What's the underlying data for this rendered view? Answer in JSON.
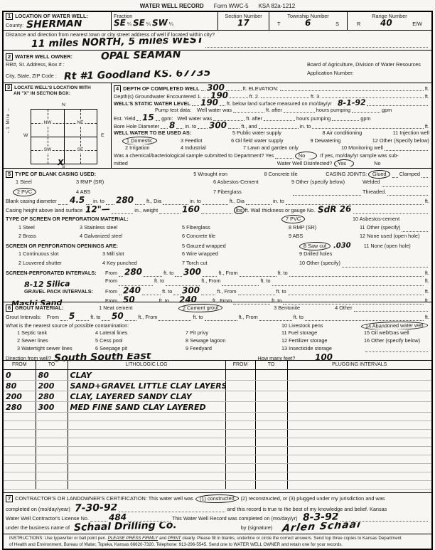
{
  "colors": {
    "paper": "#f7f6f2",
    "ink": "#1b1b1b",
    "handwriting": "#14120f"
  },
  "header": {
    "title": "WATER WELL RECORD",
    "form_no": "Form WWC-5",
    "ksa": "KSA 82a-1212"
  },
  "tok": {
    "from": "From",
    "ft_to": "ft. to",
    "ft_from": "ft., From",
    "ft": "ft.",
    "in_to": "in. to",
    "ft_dia": "ft., Dia",
    "gpm": "gpm",
    "yes": "Yes",
    "no": "No",
    "quarter": "¼",
    "t": "T",
    "s": "S",
    "r": "R",
    "ew": "E/W"
  },
  "s1": {
    "num": "1",
    "title": "LOCATION OF WATER WELL:",
    "county_label": "County:",
    "county": "SHERMAN",
    "fraction_label": "Fraction",
    "f1": "SE",
    "f2": "SE",
    "f3": "SW",
    "sec_label": "Section Number",
    "sec": "17",
    "twp_label": "Township Number",
    "twp": "6",
    "rng_label": "Range Number",
    "rng": "40",
    "distance_label": "Distance and direction from nearest town or city street address of well if located within city?",
    "distance": "11 miles NORTH, 5 miles WEST"
  },
  "s2": {
    "num": "2",
    "title": "WATER WELL OWNER:",
    "owner": "OPAL SEAMAN",
    "addr_label": "RR#, St. Address, Box #  :",
    "agency": "Board of Agriculture, Division of Water Resources",
    "city_label": "City, State, ZIP Code      :",
    "address": "Rt #1 Goodland KS.   67735",
    "app_label": "Application Number:"
  },
  "s3": {
    "num": "3",
    "title_1": "LOCATE WELL'S LOCATION WITH",
    "title_2": "AN \"X\" IN SECTION BOX:",
    "n": "N",
    "s": "S",
    "e": "E",
    "w": "W",
    "nw": "NW",
    "ne": "NE",
    "sw": "SW",
    "se": "SE",
    "mile": "1 Mile",
    "x_mark": "X",
    "up": "↑",
    "down": "↓"
  },
  "s4": {
    "num": "4",
    "depth_label": "DEPTH OF COMPLETED WELL",
    "depth": "300",
    "elev_label": "ft.  ELEVATION:",
    "gw_label": "Depth(s) Groundwater Encountered    1.",
    "gw1": "190",
    "gw2_label": "ft.  2.",
    "gw3_label": "ft.  3.",
    "swl_label": "WELL'S STATIC WATER LEVEL",
    "swl": "190",
    "swl_after": "ft. below land surface measured on mo/day/yr",
    "swl_date": "8-1-92",
    "pump_label": "Pump test data:",
    "ww": "Well water was",
    "ft_after": "ft. after",
    "hp": "hours pumping",
    "yield_label": "Est. Yield",
    "yield": "15",
    "yield_gpm": "gpm:",
    "bore_label": "Bore Hole Diameter",
    "bore_d": "8",
    "bore_depth": "300",
    "and_label": "ft.,  and",
    "use_title": "WELL WATER TO BE USED AS:",
    "u5": "5  Public water supply",
    "u8": "8  Air conditioning",
    "u11": "11  Injection well",
    "u1": "1  Domestic",
    "u3": "3  Feedlot",
    "u6": "6  Oil field water supply",
    "u9": "9  Dewatering",
    "u12": "12  Other (Specify below)",
    "u2": "2  Irrigation",
    "u4": "4  Industrial",
    "u7": "7  Lawn and garden only",
    "u10": "10  Monitoring well",
    "sample_label": "Was a chemical/bacteriological sample submitted to Department? Yes",
    "sample_after": "If yes, mo/day/yr sample was sub-",
    "mitted": "mitted",
    "disinfected_label": "Water Well Disinfected?"
  },
  "s5": {
    "num": "5",
    "title": "TYPE OF BLANK CASING USED:",
    "c5": "5  Wrought iron",
    "c8": "8  Concrete tile",
    "joints_label": "CASING JOINTS:",
    "glued": "Glued",
    "clamped": "Clamped",
    "c1": "1  Steel",
    "c3": "3  RMP (SR)",
    "c6": "6  Asbestos-Cement",
    "c9": "9  Other (specify below)",
    "welded": "Welded",
    "c2": "2  PVC",
    "c4": "4  ABS",
    "c7": "7  Fiberglass",
    "threaded": "Threaded.",
    "diam_label": "Blank casing diameter",
    "diam": "4.5",
    "diam_depth": "280",
    "height_label": "Casing height above land surface",
    "height": "12\"—",
    "weight_label": "in., weight",
    "weight": "160",
    "lbs": "lbs",
    "wall_label": "ft. Wall thickness or gauge No.",
    "gauge": "SdR 26",
    "screen_title": "TYPE OF SCREEN OR PERFORATION MATERIAL:",
    "sp7": "7  PVC",
    "sp10": "10  Asbestos-cement",
    "sp1": "1  Steel",
    "sp3": "3  Stainless steel",
    "sp5": "5  Fiberglass",
    "sp8": "8  RMP (SR)",
    "sp11": "11  Other (specify)",
    "sp2": "2  Brass",
    "sp4": "4  Galvanized steel",
    "sp6": "6  Concrete tile",
    "sp9": "9  ABS",
    "sp12": "12  None used (open hole)",
    "open_title": "SCREEN OR PERFORATION OPENINGS ARE:",
    "o5": "5  Gauzed wrapped",
    "o8": "8  Saw cut",
    "saw_val": ".030",
    "o11": "11  None (open hole)",
    "o1": "1  Continuous slot",
    "o3": "3  Mill slot",
    "o6": "6  Wire wrapped",
    "o9": "9  Drilled holes",
    "o2": "2  Louvered shutter",
    "o4": "4  Key punched",
    "o7": "7  Torch cut",
    "o10": "10  Other (specify)",
    "spi_label": "SCREEN-PERFORATED INTERVALS:",
    "spi_from": "280",
    "spi_to": "300",
    "silica": "8-12 Silica",
    "gpi_label": "GRAVEL PACK INTERVALS:",
    "gpi1_from": "240",
    "gpi1_to": "300",
    "sand": "Mashi Sand",
    "gpi2_from": "50",
    "gpi2_to": "240"
  },
  "s6": {
    "num": "6",
    "title": "GROUT MATERIAL:",
    "g1": "1  Neat cement",
    "g2": "2  Cement grout",
    "g3": "3  Bentonite",
    "g4": "4  Other",
    "gi_label": "Grout Intervals:",
    "gi_from": "5",
    "gi_to": "50",
    "cont_title": "What is the nearest source of possible contamination:",
    "c10": "10  Livestock pens",
    "c14": "14  Abandoned water well",
    "c1": "1  Septic tank",
    "c4": "4  Lateral lines",
    "c7": "7  Pit privy",
    "c11": "11  Fuel storage",
    "c15": "15  Oil well/Gas well",
    "c2": "2  Sewer lines",
    "c5": "5  Cess pool",
    "c8": "8  Sewage lagoon",
    "c12": "12  Fertilizer storage",
    "c16": "16  Other (specify below)",
    "c3": "3  Watertight sewer lines",
    "c6": "6  Seepage pit",
    "c9": "9  Feedyard",
    "c13": "13  Insecticide storage",
    "dir_label": "Direction from well?",
    "direction": "South South East",
    "feet_label": "How many feet?",
    "feet": "100"
  },
  "litho": {
    "headers": [
      "FROM",
      "TO",
      "LITHOLOGIC LOG",
      "FROM",
      "TO",
      "PLUGGING INTERVALS"
    ],
    "rows": [
      [
        "0",
        "80",
        "CLAY"
      ],
      [
        "80",
        "200",
        "SAND+GRAVEL LITTLE CLAY LAYERS"
      ],
      [
        "200",
        "280",
        "CLAY, LAYERED SANDY CLAY"
      ],
      [
        "280",
        "300",
        "MED FINE SAND CLAY LAYERED"
      ]
    ],
    "empty_rows": 9
  },
  "s7": {
    "num": "7",
    "line1a": "CONTRACTOR'S OR LANDOWNER'S CERTIFICATION: This water well was",
    "constructed": "(1) constructed",
    "line1b": "(2) reconstructed, or (3) plugged under my jurisdiction and was",
    "line2a": "completed on (mo/day/year)",
    "date_completed": "7-30-92",
    "line2b": "and this record is true to the best of my knowledge and belief. Kansas",
    "line3a": "Water Well Contractor's License No.",
    "license": "484",
    "line3b": "This Water Well Record was completed on (mo/day/yr)",
    "record_date": "8-3-92",
    "line4a": "under the business name of",
    "business": "Schaal Drilling Co.",
    "by_label": "by (signature)",
    "signature": "Arlen Schaal"
  },
  "instructions": {
    "i1a": "INSTRUCTIONS: Use typewriter or ball point pen.",
    "i1b": "PLEASE PRESS FIRMLY",
    "i1c": "and",
    "i1d": "PRINT",
    "i1e": "clearly. Please fill in blanks, underline or circle the correct answers. Send top three copies to Kansas Department",
    "i2": "of Health and Environment, Bureau of Water, Topeka, Kansas 66620-7320. Telephone: 913-296-5545. Send one to WATER WELL OWNER and retain one for your records."
  }
}
